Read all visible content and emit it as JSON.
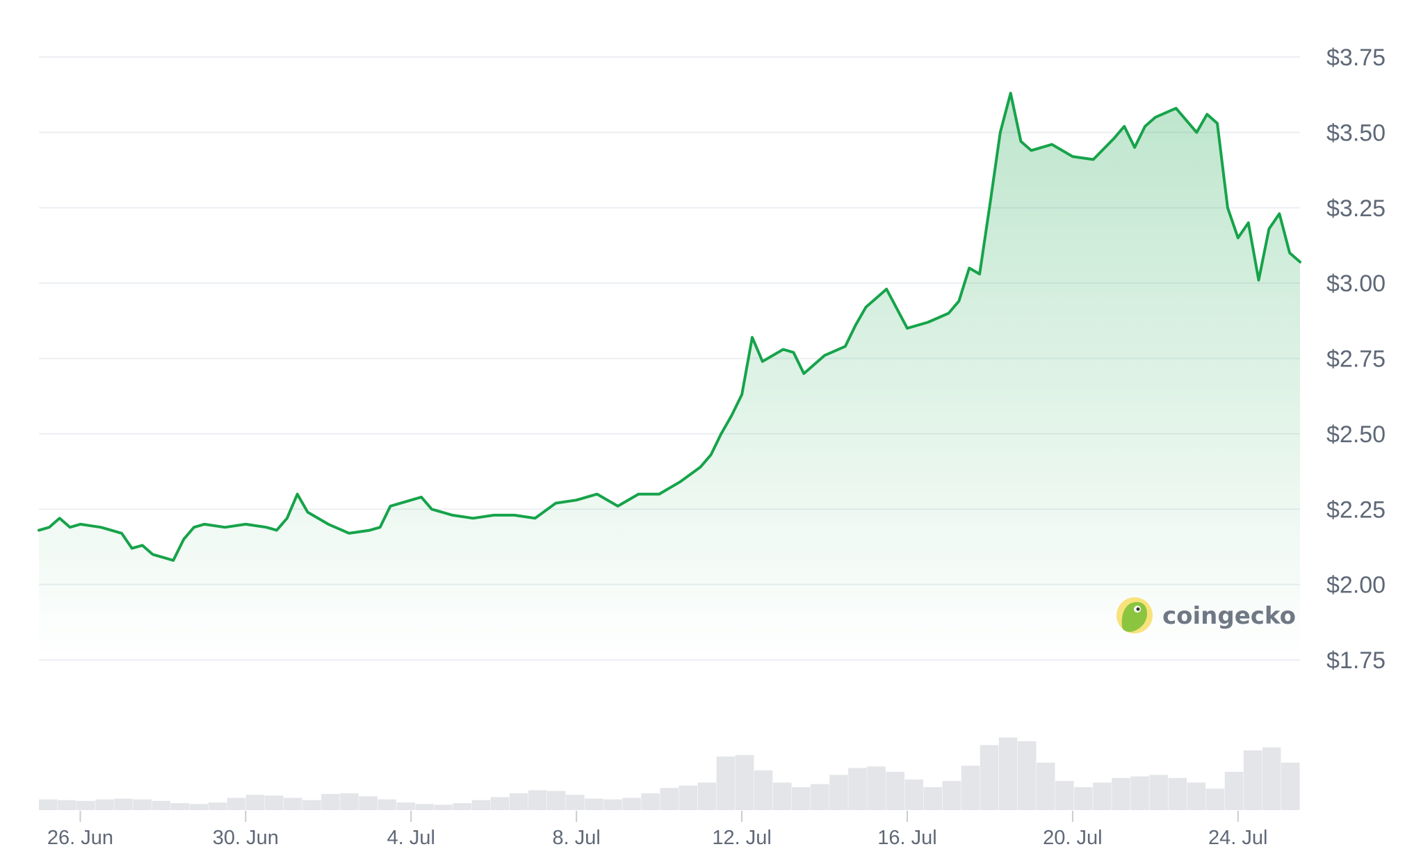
{
  "chart_data": {
    "type": "area",
    "x_start": "2025-06-25",
    "x_end": "2025-07-25T12:00",
    "y_ticks": [
      1.75,
      2.0,
      2.25,
      2.5,
      2.75,
      3.0,
      3.25,
      3.5,
      3.75
    ],
    "y_tick_labels": [
      "$1.75",
      "$2.00",
      "$2.25",
      "$2.50",
      "$2.75",
      "$3.00",
      "$3.25",
      "$3.50",
      "$3.75"
    ],
    "x_ticks": [
      "2025-06-26",
      "2025-06-30",
      "2025-07-04",
      "2025-07-08",
      "2025-07-12",
      "2025-07-16",
      "2025-07-20",
      "2025-07-24"
    ],
    "x_tick_labels": [
      "26. Jun",
      "30. Jun",
      "4. Jul",
      "8. Jul",
      "12. Jul",
      "16. Jul",
      "20. Jul",
      "24. Jul"
    ],
    "ylim": [
      1.75,
      3.75
    ],
    "grid": true,
    "line_color": "#16a34a",
    "fill_color": "#16a34a",
    "volume_color": "#e3e5e8",
    "price_series": {
      "name": "Price",
      "x": [
        "2025-06-25T00:00",
        "2025-06-25T06:00",
        "2025-06-25T12:00",
        "2025-06-25T18:00",
        "2025-06-26T00:00",
        "2025-06-26T12:00",
        "2025-06-27T00:00",
        "2025-06-27T06:00",
        "2025-06-27T12:00",
        "2025-06-27T18:00",
        "2025-06-28T00:00",
        "2025-06-28T06:00",
        "2025-06-28T12:00",
        "2025-06-28T18:00",
        "2025-06-29T00:00",
        "2025-06-29T12:00",
        "2025-06-30T00:00",
        "2025-06-30T12:00",
        "2025-06-30T18:00",
        "2025-07-01T00:00",
        "2025-07-01T06:00",
        "2025-07-01T12:00",
        "2025-07-02T00:00",
        "2025-07-02T12:00",
        "2025-07-03T00:00",
        "2025-07-03T06:00",
        "2025-07-03T12:00",
        "2025-07-04T00:00",
        "2025-07-04T06:00",
        "2025-07-04T12:00",
        "2025-07-05T00:00",
        "2025-07-05T12:00",
        "2025-07-06T00:00",
        "2025-07-06T12:00",
        "2025-07-07T00:00",
        "2025-07-07T12:00",
        "2025-07-08T00:00",
        "2025-07-08T12:00",
        "2025-07-09T00:00",
        "2025-07-09T12:00",
        "2025-07-10T00:00",
        "2025-07-10T12:00",
        "2025-07-11T00:00",
        "2025-07-11T06:00",
        "2025-07-11T12:00",
        "2025-07-11T18:00",
        "2025-07-12T00:00",
        "2025-07-12T06:00",
        "2025-07-12T12:00",
        "2025-07-13T00:00",
        "2025-07-13T06:00",
        "2025-07-13T12:00",
        "2025-07-14T00:00",
        "2025-07-14T12:00",
        "2025-07-14T18:00",
        "2025-07-15T00:00",
        "2025-07-15T12:00",
        "2025-07-16T00:00",
        "2025-07-16T12:00",
        "2025-07-17T00:00",
        "2025-07-17T06:00",
        "2025-07-17T12:00",
        "2025-07-17T18:00",
        "2025-07-18T00:00",
        "2025-07-18T06:00",
        "2025-07-18T12:00",
        "2025-07-18T18:00",
        "2025-07-19T00:00",
        "2025-07-19T12:00",
        "2025-07-20T00:00",
        "2025-07-20T12:00",
        "2025-07-21T00:00",
        "2025-07-21T06:00",
        "2025-07-21T12:00",
        "2025-07-21T18:00",
        "2025-07-22T00:00",
        "2025-07-22T12:00",
        "2025-07-23T00:00",
        "2025-07-23T06:00",
        "2025-07-23T12:00",
        "2025-07-23T18:00",
        "2025-07-24T00:00",
        "2025-07-24T06:00",
        "2025-07-24T12:00",
        "2025-07-24T18:00",
        "2025-07-25T00:00",
        "2025-07-25T06:00",
        "2025-07-25T12:00"
      ],
      "y": [
        2.18,
        2.19,
        2.22,
        2.19,
        2.2,
        2.19,
        2.17,
        2.12,
        2.13,
        2.1,
        2.09,
        2.08,
        2.15,
        2.19,
        2.2,
        2.19,
        2.2,
        2.19,
        2.18,
        2.22,
        2.3,
        2.24,
        2.2,
        2.17,
        2.18,
        2.19,
        2.26,
        2.28,
        2.29,
        2.25,
        2.23,
        2.22,
        2.23,
        2.23,
        2.22,
        2.27,
        2.28,
        2.3,
        2.26,
        2.3,
        2.3,
        2.34,
        2.39,
        2.43,
        2.5,
        2.56,
        2.63,
        2.82,
        2.74,
        2.78,
        2.77,
        2.7,
        2.76,
        2.79,
        2.86,
        2.92,
        2.98,
        2.85,
        2.87,
        2.9,
        2.94,
        3.05,
        3.03,
        3.26,
        3.5,
        3.63,
        3.47,
        3.44,
        3.46,
        3.42,
        3.41,
        3.48,
        3.52,
        3.45,
        3.52,
        3.55,
        3.58,
        3.5,
        3.56,
        3.53,
        3.25,
        3.15,
        3.2,
        3.01,
        3.18,
        3.23,
        3.1,
        3.07
      ]
    },
    "volume_relative": [
      0.14,
      0.13,
      0.12,
      0.14,
      0.15,
      0.14,
      0.12,
      0.09,
      0.08,
      0.1,
      0.16,
      0.2,
      0.19,
      0.16,
      0.13,
      0.21,
      0.22,
      0.18,
      0.14,
      0.1,
      0.08,
      0.07,
      0.09,
      0.13,
      0.17,
      0.22,
      0.26,
      0.25,
      0.2,
      0.15,
      0.14,
      0.16,
      0.22,
      0.29,
      0.32,
      0.36,
      0.7,
      0.72,
      0.52,
      0.36,
      0.3,
      0.34,
      0.46,
      0.55,
      0.57,
      0.5,
      0.4,
      0.3,
      0.38,
      0.58,
      0.85,
      0.95,
      0.9,
      0.62,
      0.38,
      0.3,
      0.36,
      0.42,
      0.44,
      0.46,
      0.42,
      0.36,
      0.28,
      0.5,
      0.78,
      0.82,
      0.62
    ]
  },
  "watermark": {
    "brand": "coingecko",
    "icon": "gecko-logo-icon"
  }
}
